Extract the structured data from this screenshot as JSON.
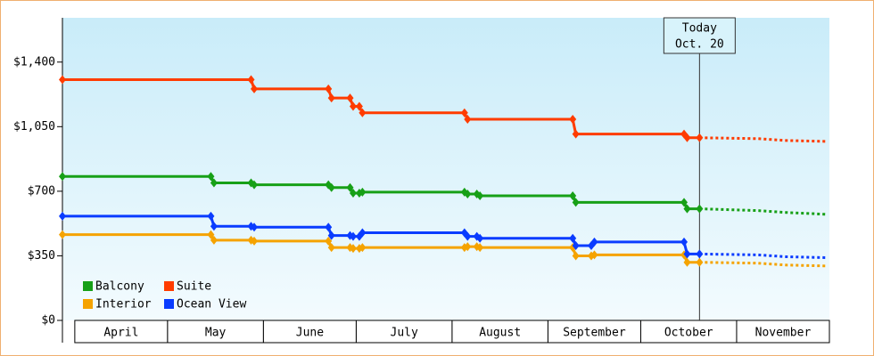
{
  "chart_data": {
    "type": "line",
    "xlim": [
      "03-28",
      "11-30"
    ],
    "xticks": [
      {
        "value": "04-01",
        "label": "April"
      },
      {
        "value": "05-01",
        "label": "May"
      },
      {
        "value": "06-01",
        "label": "June"
      },
      {
        "value": "07-01",
        "label": "July"
      },
      {
        "value": "08-01",
        "label": "August"
      },
      {
        "value": "09-01",
        "label": "September"
      },
      {
        "value": "10-01",
        "label": "October"
      },
      {
        "value": "11-01",
        "label": "November"
      }
    ],
    "ylim": [
      0,
      1640
    ],
    "yticks": [
      {
        "value": 0,
        "label": "$0"
      },
      {
        "value": 350,
        "label": "$350"
      },
      {
        "value": 700,
        "label": "$700"
      },
      {
        "value": 1050,
        "label": "$1,050"
      },
      {
        "value": 1400,
        "label": "$1,400"
      }
    ],
    "annotation": {
      "x": "10-20",
      "lines": [
        "Today",
        "Oct. 20"
      ]
    },
    "series": [
      {
        "name": "Balcony",
        "color": "#17a017",
        "x": [
          "03-28",
          "05-15",
          "05-16",
          "05-28",
          "05-29",
          "06-22",
          "06-23",
          "06-29",
          "06-30",
          "07-02",
          "07-03",
          "08-05",
          "08-06",
          "08-09",
          "08-10",
          "09-09",
          "09-10",
          "10-15",
          "10-16",
          "10-20"
        ],
        "values": [
          780,
          780,
          745,
          745,
          735,
          735,
          720,
          720,
          690,
          690,
          695,
          695,
          685,
          685,
          675,
          675,
          640,
          640,
          605,
          605
        ],
        "forecast": {
          "x": [
            "10-20",
            "11-08",
            "11-17",
            "11-30"
          ],
          "values": [
            605,
            595,
            585,
            575
          ]
        }
      },
      {
        "name": "Suite",
        "color": "#ff3c00",
        "x": [
          "03-28",
          "05-28",
          "05-29",
          "06-22",
          "06-23",
          "06-29",
          "06-30",
          "07-02",
          "07-03",
          "08-05",
          "08-06",
          "09-09",
          "09-10",
          "10-15",
          "10-16",
          "10-20"
        ],
        "values": [
          1305,
          1305,
          1255,
          1255,
          1205,
          1205,
          1160,
          1160,
          1125,
          1125,
          1090,
          1090,
          1010,
          1010,
          990,
          990
        ],
        "forecast": {
          "x": [
            "10-20",
            "11-08",
            "11-17",
            "11-30"
          ],
          "values": [
            990,
            985,
            975,
            970
          ]
        }
      },
      {
        "name": "Interior",
        "color": "#f5a300",
        "x": [
          "03-28",
          "05-15",
          "05-16",
          "05-28",
          "05-29",
          "06-22",
          "06-23",
          "06-29",
          "06-30",
          "07-02",
          "07-03",
          "08-05",
          "08-06",
          "08-09",
          "08-10",
          "09-09",
          "09-10",
          "09-15",
          "09-16",
          "10-15",
          "10-16",
          "10-20"
        ],
        "values": [
          465,
          465,
          435,
          435,
          430,
          430,
          395,
          395,
          390,
          390,
          395,
          395,
          400,
          400,
          395,
          395,
          350,
          350,
          355,
          355,
          315,
          315
        ],
        "forecast": {
          "x": [
            "10-20",
            "11-08",
            "11-17",
            "11-30"
          ],
          "values": [
            315,
            310,
            300,
            295
          ]
        }
      },
      {
        "name": "Ocean View",
        "color": "#0a3cff",
        "x": [
          "03-28",
          "05-15",
          "05-16",
          "05-28",
          "05-29",
          "06-22",
          "06-23",
          "06-29",
          "06-30",
          "07-02",
          "07-03",
          "08-05",
          "08-06",
          "08-09",
          "08-10",
          "09-09",
          "09-10",
          "09-15",
          "09-16",
          "10-15",
          "10-16",
          "10-20"
        ],
        "values": [
          565,
          565,
          510,
          510,
          505,
          505,
          460,
          460,
          455,
          455,
          475,
          475,
          455,
          455,
          445,
          445,
          405,
          405,
          425,
          425,
          360,
          360
        ],
        "forecast": {
          "x": [
            "10-20",
            "11-08",
            "11-17",
            "11-30"
          ],
          "values": [
            360,
            355,
            345,
            340
          ]
        }
      }
    ]
  }
}
